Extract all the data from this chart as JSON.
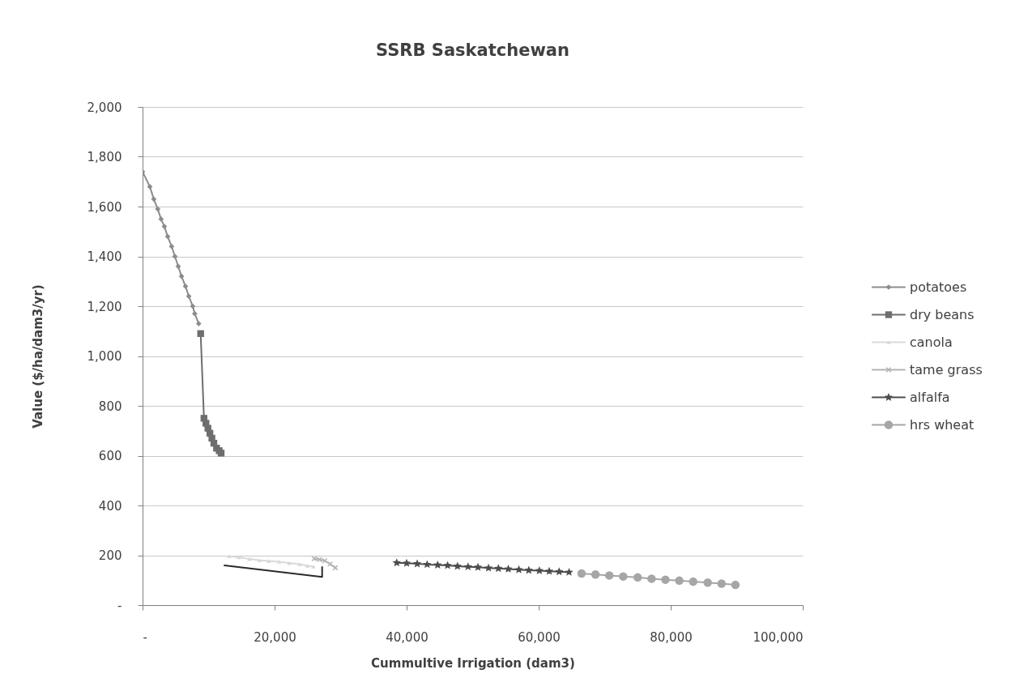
{
  "chart_data": {
    "type": "line",
    "title": "SSRB Saskatchewan",
    "xlabel": "Cummultive Irrigation (dam3)",
    "ylabel": "Value ($/ha/dam3/yr)",
    "xlim": [
      0,
      100000
    ],
    "xticks": [
      {
        "value": 0,
        "label": "-"
      },
      {
        "value": 20000,
        "label": "20,000"
      },
      {
        "value": 40000,
        "label": "40,000"
      },
      {
        "value": 60000,
        "label": "60,000"
      },
      {
        "value": 80000,
        "label": "80,000"
      },
      {
        "value": 100000,
        "label": "100,000"
      }
    ],
    "ylim": [
      0,
      2000
    ],
    "yticks": [
      {
        "value": 0,
        "label": "-"
      },
      200,
      400,
      600,
      800,
      {
        "value": 1000,
        "label": "1,000"
      },
      {
        "value": 1200,
        "label": "1,200"
      },
      {
        "value": 1400,
        "label": "1,400"
      },
      {
        "value": 1600,
        "label": "1,600"
      },
      {
        "value": 1800,
        "label": "1,800"
      },
      {
        "value": 2000,
        "label": "2,000"
      }
    ],
    "grid": "y",
    "legend": "right",
    "series": [
      {
        "name": "potatoes",
        "color": "#8c8c8c",
        "marker": "diamond",
        "x": [
          0,
          1100,
          1700,
          2300,
          2800,
          3300,
          3800,
          4400,
          4900,
          5400,
          5900,
          6500,
          7000,
          7600,
          7900,
          8500
        ],
        "values": [
          1740,
          1680,
          1630,
          1590,
          1550,
          1520,
          1480,
          1440,
          1400,
          1360,
          1320,
          1280,
          1240,
          1200,
          1170,
          1130
        ]
      },
      {
        "name": "dry beans",
        "color": "#6e6e6e",
        "marker": "square",
        "x": [
          8800,
          9300,
          9600,
          9900,
          10200,
          10500,
          10800,
          11200,
          11600,
          11900
        ],
        "values": [
          1090,
          750,
          730,
          710,
          690,
          670,
          650,
          630,
          620,
          610
        ]
      },
      {
        "name": "canola",
        "color": "#d9d9d9",
        "marker": "triangle",
        "x": [
          13100,
          14600,
          16200,
          17700,
          19100,
          20700,
          22200,
          23800,
          25000,
          25900
        ],
        "values": [
          196,
          192,
          185,
          180,
          177,
          174,
          169,
          164,
          158,
          155
        ]
      },
      {
        "name": "tame grass",
        "color": "#b4b4b4",
        "marker": "cross",
        "x": [
          26000,
          26800,
          27600,
          28400,
          29200
        ],
        "values": [
          186,
          183,
          178,
          165,
          150
        ]
      },
      {
        "name": "alfalfa",
        "color": "#4d4d4d",
        "marker": "star",
        "x": [
          38500,
          40000,
          41600,
          43100,
          44700,
          46200,
          47700,
          49300,
          50800,
          52400,
          53900,
          55400,
          57000,
          58500,
          60100,
          61600,
          63100,
          64600
        ],
        "values": [
          170,
          168,
          166,
          163,
          161,
          159,
          156,
          154,
          152,
          149,
          147,
          145,
          142,
          140,
          138,
          136,
          134,
          132
        ]
      },
      {
        "name": "hrs wheat",
        "color": "#a6a6a6",
        "marker": "circle",
        "x": [
          66500,
          68600,
          70700,
          72800,
          75000,
          77100,
          79200,
          81300,
          83400,
          85600,
          87700,
          89800
        ],
        "values": [
          127,
          123,
          119,
          115,
          111,
          106,
          102,
          98,
          94,
          90,
          86,
          81
        ]
      },
      {
        "color": "#2b2b2b",
        "marker": "none",
        "x": [
          12400,
          27200,
          27200
        ],
        "values": [
          159,
          113,
          153
        ]
      }
    ]
  }
}
